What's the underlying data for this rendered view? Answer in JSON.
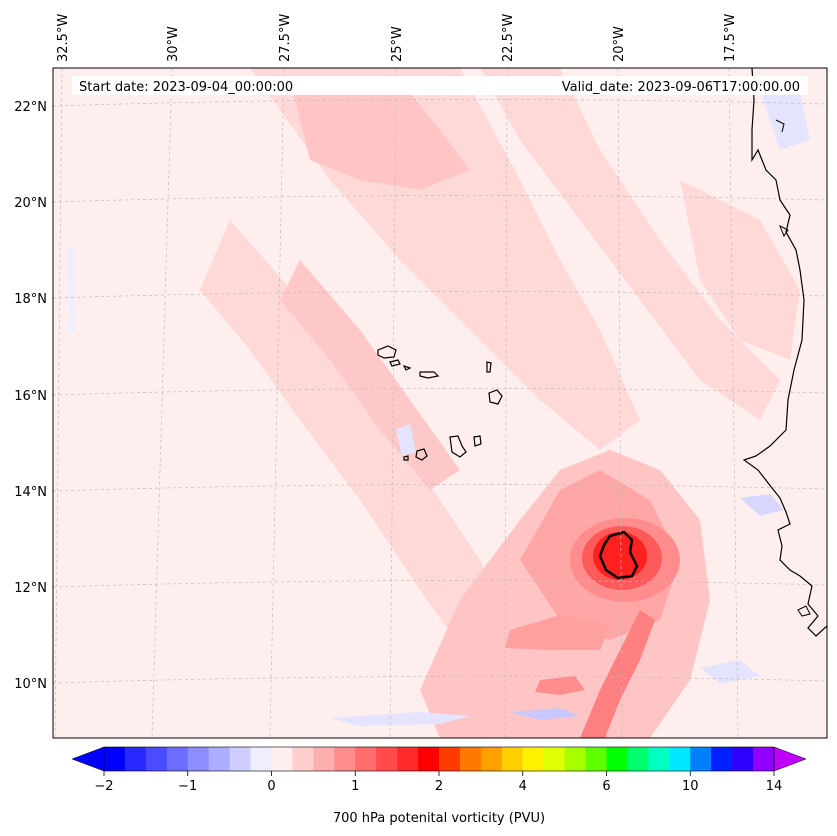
{
  "header": {
    "start_date": "Start date: 2023-09-04_00:00:00",
    "valid_date": "Valid_date: 2023-09-06T17:00:00.00"
  },
  "axes": {
    "lon_labels": [
      "32.5°W",
      "30°W",
      "27.5°W",
      "25°W",
      "22.5°W",
      "20°W",
      "17.5°W"
    ],
    "lat_labels": [
      "22°N",
      "20°N",
      "18°N",
      "16°N",
      "14°N",
      "12°N",
      "10°N"
    ]
  },
  "colorbar": {
    "title": "700 hPa potenital vorticity (PVU)",
    "tick_labels": [
      "−2",
      "−1",
      "0",
      "1",
      "2",
      "4",
      "6",
      "10",
      "14"
    ],
    "colors": [
      "#0000ff",
      "#2a2aff",
      "#4b4bff",
      "#6d6dff",
      "#8d8dff",
      "#aeaeff",
      "#cfcfff",
      "#eeeeff",
      "#ffeeee",
      "#ffcfcf",
      "#ffaeae",
      "#ff8d8d",
      "#ff6d6d",
      "#ff4b4b",
      "#ff2a2a",
      "#ff0000",
      "#ff3c00",
      "#ff7800",
      "#ffa000",
      "#ffd000",
      "#fff000",
      "#e0ff00",
      "#a8ff00",
      "#60ff00",
      "#00ff00",
      "#00ff70",
      "#00ffc0",
      "#00e8ff",
      "#0080ff",
      "#0020ff",
      "#3000ff",
      "#9000ff"
    ],
    "low_extend_color": "#0000ff",
    "high_extend_color": "#c000ff"
  },
  "colors": {
    "background_pv": "#ffeeee",
    "band_light": "#ffd8d8",
    "band_mid": "#ffc2c2",
    "core_strong": "#ff3a3a",
    "core_max": "#ff0000",
    "negative_pv": "#e8e8ff"
  }
}
